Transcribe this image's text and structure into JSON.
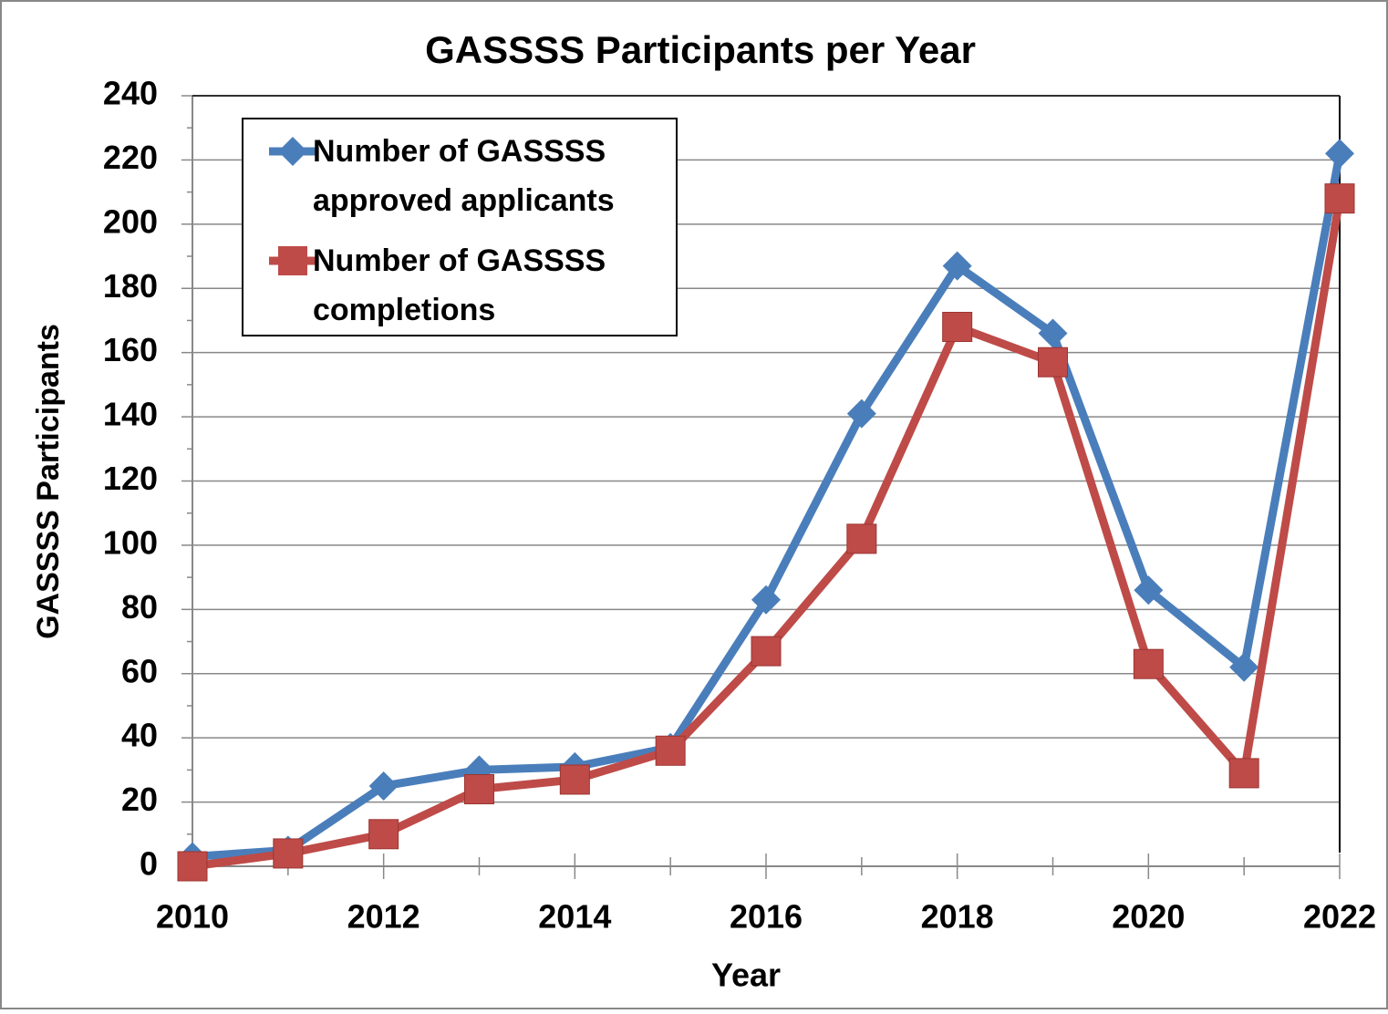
{
  "chart_data": {
    "type": "line",
    "title": "GASSSS Participants per Year",
    "xlabel": "Year",
    "ylabel": "GASSSS Participants",
    "x": [
      2010,
      2011,
      2012,
      2013,
      2014,
      2015,
      2016,
      2017,
      2018,
      2019,
      2020,
      2021,
      2022
    ],
    "series": [
      {
        "name": "Number of GASSSS approved applicants",
        "color": "#4a7ebb",
        "marker": "diamond",
        "values": [
          3,
          5,
          25,
          30,
          31,
          37,
          83,
          141,
          187,
          166,
          86,
          62,
          222
        ]
      },
      {
        "name": "Number of GASSSS completions",
        "color": "#be4b48",
        "marker": "square",
        "values": [
          0,
          4,
          10,
          24,
          27,
          36,
          67,
          102,
          168,
          157,
          63,
          29,
          208
        ]
      }
    ],
    "xlim": [
      2010,
      2022
    ],
    "xticks": [
      2010,
      2012,
      2014,
      2016,
      2018,
      2020,
      2022
    ],
    "ylim": [
      0,
      240
    ],
    "yticks": [
      0,
      20,
      40,
      60,
      80,
      100,
      120,
      140,
      160,
      180,
      200,
      220,
      240
    ],
    "grid": true,
    "legend": "upper left"
  }
}
